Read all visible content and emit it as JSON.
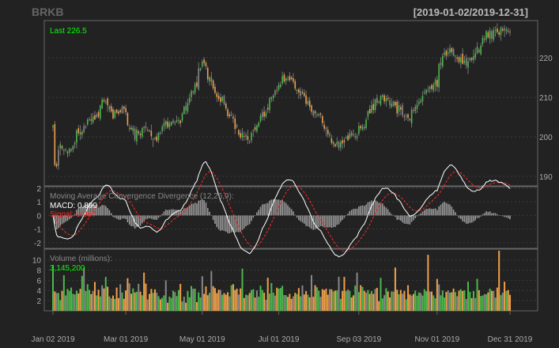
{
  "header": {
    "symbol": "BRKB",
    "range": "[2019-01-02/2019-12-31]"
  },
  "colors": {
    "background": "#222222",
    "panel_border": "#666666",
    "grid": "#3a3a3a",
    "axis_text": "#aaaaaa",
    "up": "#4cb84c",
    "down": "#f0a04a",
    "neutral": "#888888",
    "last_label": "#00ff00",
    "macd_line": "#ffffff",
    "signal_line": "#ff2a2a",
    "histogram": "#9a9a9a"
  },
  "chart_data": [
    {
      "type": "candlestick",
      "panel": "price",
      "last_label": "Last 226.5",
      "ylim": [
        188,
        229
      ],
      "yticks": [
        190,
        200,
        210,
        220
      ],
      "xticks": [
        "Jan 02 2019",
        "Mar 01 2019",
        "May 01 2019",
        "Jul 01 2019",
        "Sep 03 2019",
        "Nov 01 2019",
        "Dec 31 2019"
      ],
      "grid": true,
      "anchors_date_close": [
        [
          "2019-01-02",
          202.8
        ],
        [
          "2019-01-03",
          191.7
        ],
        [
          "2019-01-08",
          197.0
        ],
        [
          "2019-01-15",
          196.5
        ],
        [
          "2019-01-25",
          202.5
        ],
        [
          "2019-02-05",
          205.0
        ],
        [
          "2019-02-12",
          209.0
        ],
        [
          "2019-02-20",
          205.0
        ],
        [
          "2019-02-28",
          206.5
        ],
        [
          "2019-03-08",
          201.0
        ],
        [
          "2019-03-18",
          202.5
        ],
        [
          "2019-03-25",
          198.5
        ],
        [
          "2019-04-01",
          204.0
        ],
        [
          "2019-04-08",
          203.0
        ],
        [
          "2019-04-15",
          206.0
        ],
        [
          "2019-04-23",
          210.5
        ],
        [
          "2019-04-30",
          217.5
        ],
        [
          "2019-05-03",
          218.5
        ],
        [
          "2019-05-10",
          211.5
        ],
        [
          "2019-05-15",
          210.0
        ],
        [
          "2019-05-22",
          205.5
        ],
        [
          "2019-05-31",
          201.0
        ],
        [
          "2019-06-07",
          199.0
        ],
        [
          "2019-06-14",
          203.5
        ],
        [
          "2019-06-21",
          207.0
        ],
        [
          "2019-06-28",
          212.0
        ],
        [
          "2019-07-05",
          215.5
        ],
        [
          "2019-07-12",
          214.0
        ],
        [
          "2019-07-19",
          211.0
        ],
        [
          "2019-07-26",
          207.5
        ],
        [
          "2019-08-02",
          205.0
        ],
        [
          "2019-08-09",
          200.5
        ],
        [
          "2019-08-16",
          198.0
        ],
        [
          "2019-08-23",
          199.5
        ],
        [
          "2019-08-30",
          201.0
        ],
        [
          "2019-09-06",
          203.0
        ],
        [
          "2019-09-13",
          208.0
        ],
        [
          "2019-09-20",
          210.5
        ],
        [
          "2019-09-27",
          208.5
        ],
        [
          "2019-10-04",
          207.0
        ],
        [
          "2019-10-11",
          204.5
        ],
        [
          "2019-10-18",
          208.5
        ],
        [
          "2019-10-25",
          211.5
        ],
        [
          "2019-11-01",
          214.0
        ],
        [
          "2019-11-08",
          221.5
        ],
        [
          "2019-11-15",
          220.5
        ],
        [
          "2019-11-22",
          218.5
        ],
        [
          "2019-11-29",
          220.0
        ],
        [
          "2019-12-06",
          223.0
        ],
        [
          "2019-12-13",
          226.5
        ],
        [
          "2019-12-20",
          226.0
        ],
        [
          "2019-12-31",
          226.5
        ]
      ]
    },
    {
      "type": "line",
      "panel": "macd",
      "title": "Moving Average Convergence Divergence (12,26,9):",
      "series": [
        {
          "name": "MACD:",
          "last_value": "0.899"
        },
        {
          "name": "Signal:",
          "last_value": "0.967"
        }
      ],
      "ylim": [
        -2.3,
        2.0
      ],
      "yticks": [
        -2,
        -1,
        0,
        1,
        2
      ],
      "histogram": "MACD - Signal"
    },
    {
      "type": "bar",
      "panel": "volume",
      "title": "Volume (millions):",
      "last_value": "3,145,200",
      "ylim": [
        0,
        11.8
      ],
      "yticks": [
        2,
        4,
        6,
        8,
        10
      ],
      "spikes_date_value": [
        [
          "2019-01-02",
          9.0
        ],
        [
          "2019-01-28",
          8.5
        ],
        [
          "2019-03-15",
          7.5
        ],
        [
          "2019-05-01",
          6.8
        ],
        [
          "2019-05-08",
          7.8
        ],
        [
          "2019-06-21",
          6.5
        ],
        [
          "2019-08-30",
          7.5
        ],
        [
          "2019-10-01",
          8.5
        ],
        [
          "2019-10-25",
          11.0
        ],
        [
          "2019-12-20",
          11.8
        ]
      ]
    }
  ]
}
